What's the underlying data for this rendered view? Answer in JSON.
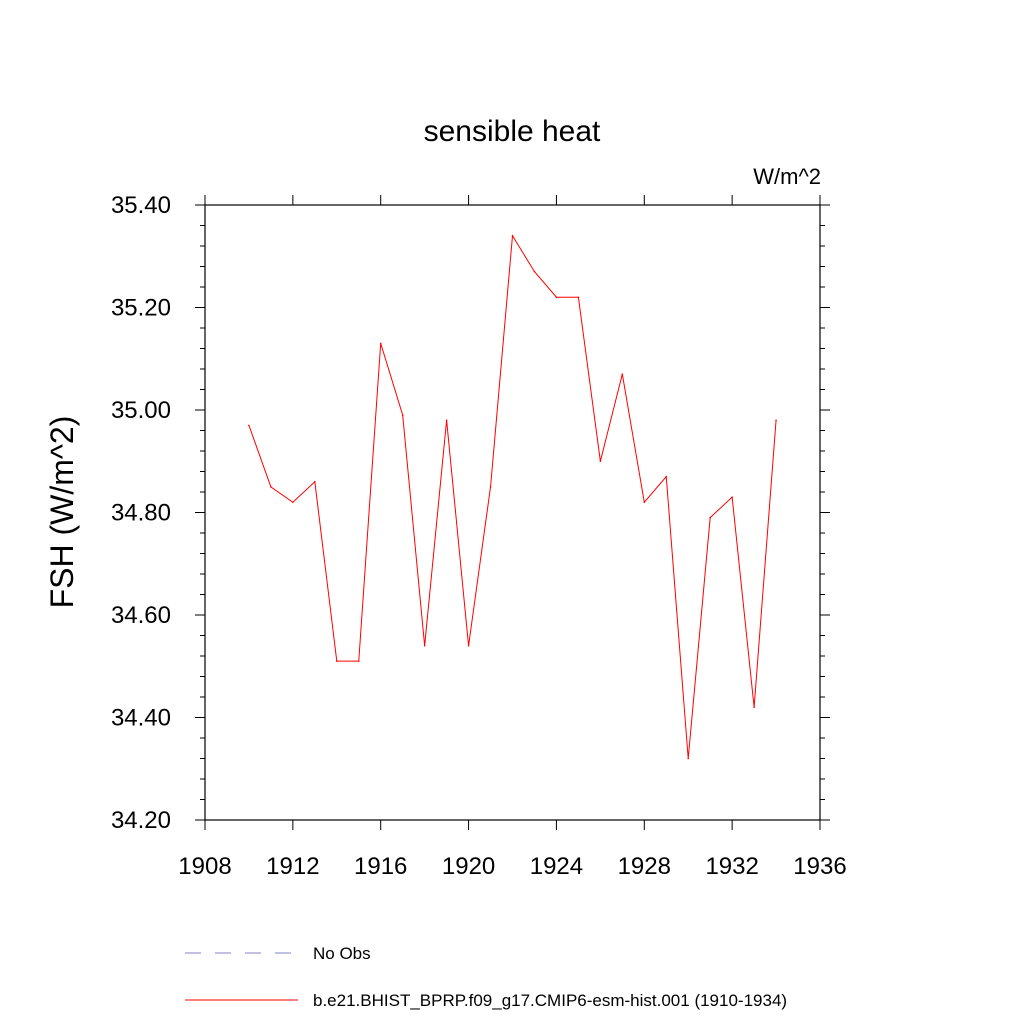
{
  "chart_data": {
    "type": "line",
    "title": "sensible heat",
    "units_label": "W/m^2",
    "xlabel": "",
    "ylabel": "FSH  (W/m^2)",
    "xlim": [
      1908,
      1936
    ],
    "ylim": [
      34.2,
      35.4
    ],
    "x_ticks": [
      1908,
      1912,
      1916,
      1920,
      1924,
      1928,
      1932,
      1936
    ],
    "x_tick_labels": [
      "1908",
      "1912",
      "1916",
      "1920",
      "1924",
      "1928",
      "1932",
      "1936"
    ],
    "y_ticks": [
      34.2,
      34.4,
      34.6,
      34.8,
      35.0,
      35.2,
      35.4
    ],
    "y_tick_labels": [
      "34.20",
      "34.40",
      "34.60",
      "34.80",
      "35.00",
      "35.20",
      "35.40"
    ],
    "grid": false,
    "legend_position": "bottom",
    "series": [
      {
        "name": "b.e21.BHIST_BPRP.f09_g17.CMIP6-esm-hist.001 (1910-1934)",
        "color": "#ff0000",
        "style": "solid",
        "x": [
          1910,
          1911,
          1912,
          1913,
          1914,
          1915,
          1916,
          1917,
          1918,
          1919,
          1920,
          1921,
          1922,
          1923,
          1924,
          1925,
          1926,
          1927,
          1928,
          1929,
          1930,
          1931,
          1932,
          1933,
          1934
        ],
        "values": [
          34.97,
          34.85,
          34.82,
          34.86,
          34.51,
          34.51,
          35.13,
          34.99,
          34.54,
          34.98,
          34.54,
          34.85,
          35.34,
          35.27,
          35.22,
          35.22,
          34.9,
          35.07,
          34.82,
          34.87,
          34.32,
          34.79,
          34.83,
          34.42,
          34.98
        ]
      }
    ],
    "legend": [
      {
        "label": "No Obs",
        "color": "#8080c0",
        "style": "dashed"
      },
      {
        "label": "b.e21.BHIST_BPRP.f09_g17.CMIP6-esm-hist.001 (1910-1934)",
        "color": "#ff0000",
        "style": "solid"
      }
    ]
  }
}
